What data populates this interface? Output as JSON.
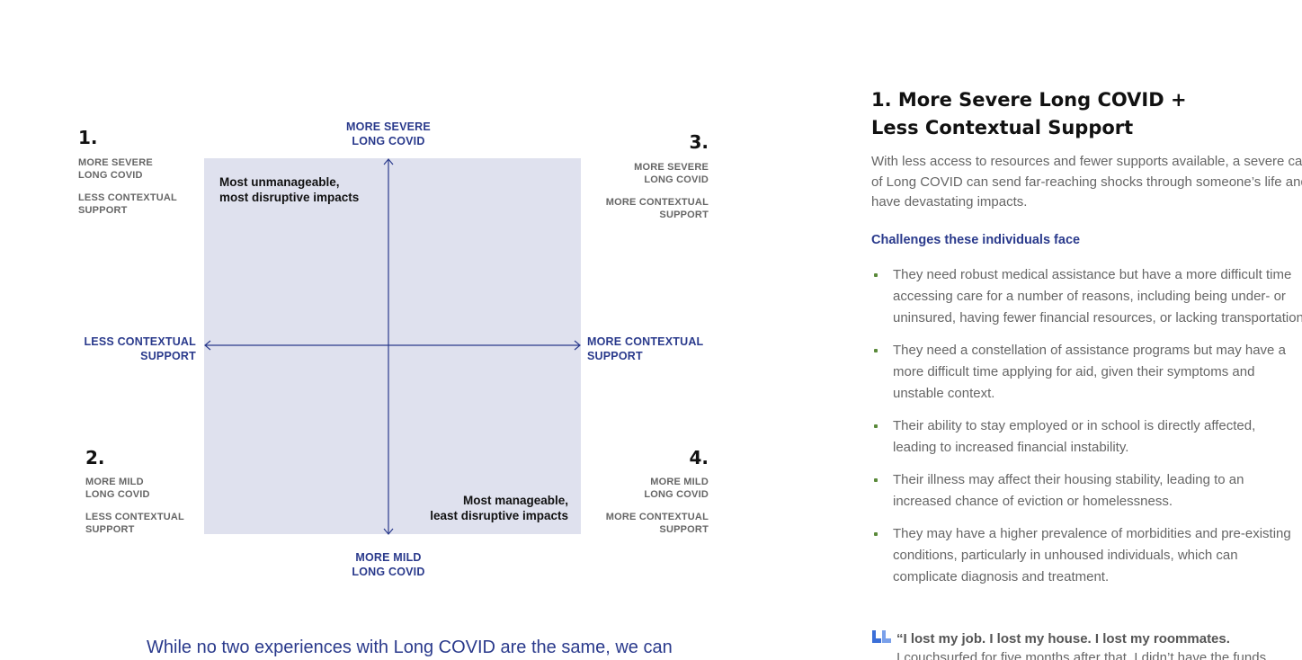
{
  "diagram": {
    "axis_top": [
      "MORE SEVERE",
      "LONG COVID"
    ],
    "axis_bottom": [
      "MORE MILD",
      "LONG COVID"
    ],
    "axis_left": [
      "LESS CONTEXTUAL",
      "SUPPORT"
    ],
    "axis_right": [
      "MORE CONTEXTUAL",
      "SUPPORT"
    ],
    "quadrants": [
      {
        "number": "1.",
        "lines": [
          "MORE SEVERE",
          "LONG COVID"
        ],
        "lines2": [
          "LESS CONTEXTUAL",
          "SUPPORT"
        ]
      },
      {
        "number": "2.",
        "lines": [
          "MORE MILD",
          "LONG COVID"
        ],
        "lines2": [
          "LESS CONTEXTUAL",
          "SUPPORT"
        ]
      },
      {
        "number": "3.",
        "lines": [
          "MORE SEVERE",
          "LONG COVID"
        ],
        "lines2": [
          "MORE CONTEXTUAL",
          "SUPPORT"
        ]
      },
      {
        "number": "4.",
        "lines": [
          "MORE MILD",
          "LONG COVID"
        ],
        "lines2": [
          "MORE CONTEXTUAL",
          "SUPPORT"
        ]
      }
    ],
    "impact_top": [
      "Most unmanageable,",
      "most disruptive impacts"
    ],
    "impact_bottom": [
      "Most manageable,",
      "least disruptive impacts"
    ],
    "axis_color": "#2a3a8c",
    "box_color": "#dfe1ee"
  },
  "intro_text": "While no two experiences with Long COVID are the same, we can",
  "right": {
    "title_line1": "1. More Severe Long COVID +",
    "title_line2": "Less Contextual Support",
    "desc_lines": [
      "With less access to resources and fewer supports available, a severe case",
      "of Long COVID can send far-reaching shocks through someone’s life and",
      "have devastating impacts."
    ],
    "subheading": "Challenges these individuals face",
    "bullets": [
      [
        "They need robust medical assistance but have a more difficult time",
        "accessing care for a number of reasons, including being under- or",
        "uninsured, having fewer financial resources, or lacking transportation."
      ],
      [
        "They need a constellation of assistance programs but may have a",
        "more difficult time applying for aid, given their symptoms and",
        "unstable context."
      ],
      [
        "Their ability to stay employed or in school is directly affected,",
        "leading to increased financial instability."
      ],
      [
        "Their illness may affect their housing stability, leading to an",
        "increased chance of eviction or homelessness."
      ],
      [
        "They may have a higher prevalence of morbidities and pre-existing",
        "conditions, particularly in unhoused individuals, which can",
        "complicate diagnosis and treatment."
      ]
    ],
    "quote_line1": "“I lost my job. I lost my house. I lost my roommates.",
    "quote_line2": "I couchsurfed for five months after that. I didn’t have the funds",
    "quote_icon": "quote-mark-icon"
  }
}
